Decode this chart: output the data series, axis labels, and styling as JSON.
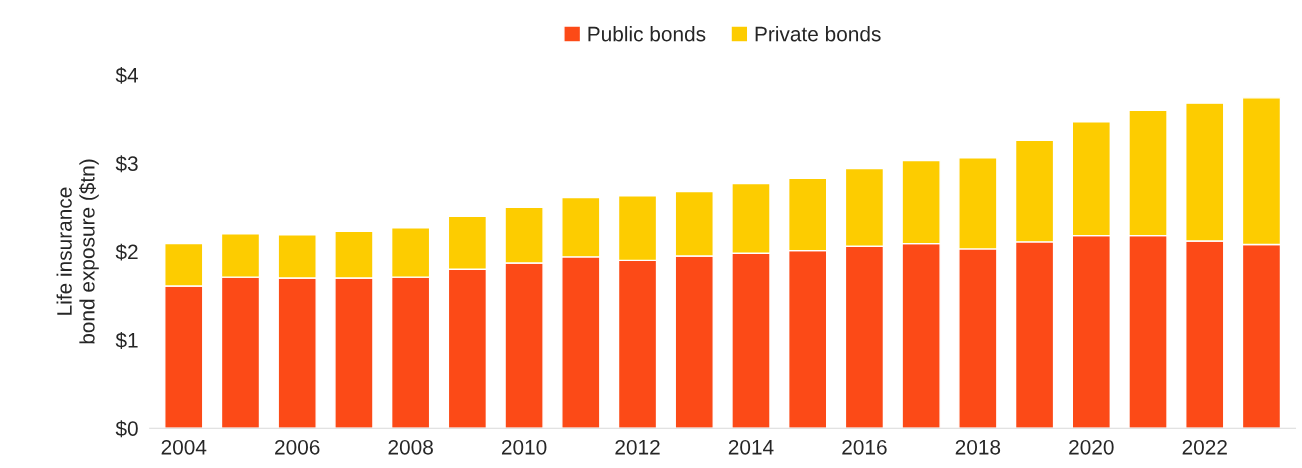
{
  "chart_data": {
    "type": "bar",
    "stacked": true,
    "ylabel": "Life insurance\nbond exposure ($tn)",
    "categories": [
      "2004",
      null,
      "2006",
      null,
      "2008",
      null,
      "2010",
      null,
      "2012",
      null,
      "2014",
      null,
      "2016",
      null,
      "2018",
      null,
      "2020",
      null,
      "2022",
      null
    ],
    "series": [
      {
        "name": "Public bonds",
        "color": "#fc4a17",
        "values": [
          1.61,
          1.71,
          1.7,
          1.7,
          1.71,
          1.8,
          1.87,
          1.94,
          1.9,
          1.95,
          1.98,
          2.01,
          2.06,
          2.09,
          2.03,
          2.11,
          2.18,
          2.18,
          2.12,
          2.08
        ]
      },
      {
        "name": "Private bonds",
        "color": "#fdcc00",
        "values": [
          0.48,
          0.49,
          0.49,
          0.53,
          0.56,
          0.6,
          0.63,
          0.67,
          0.73,
          0.73,
          0.79,
          0.82,
          0.88,
          0.94,
          1.03,
          1.15,
          1.29,
          1.42,
          1.56,
          1.66
        ]
      }
    ],
    "ylim": [
      0,
      4
    ],
    "yticks": [
      {
        "value": 0,
        "label": "$0"
      },
      {
        "value": 1,
        "label": "$1"
      },
      {
        "value": 2,
        "label": "$2"
      },
      {
        "value": 3,
        "label": "$3"
      },
      {
        "value": 4,
        "label": "$4"
      }
    ],
    "grid": false,
    "legend": "top"
  }
}
